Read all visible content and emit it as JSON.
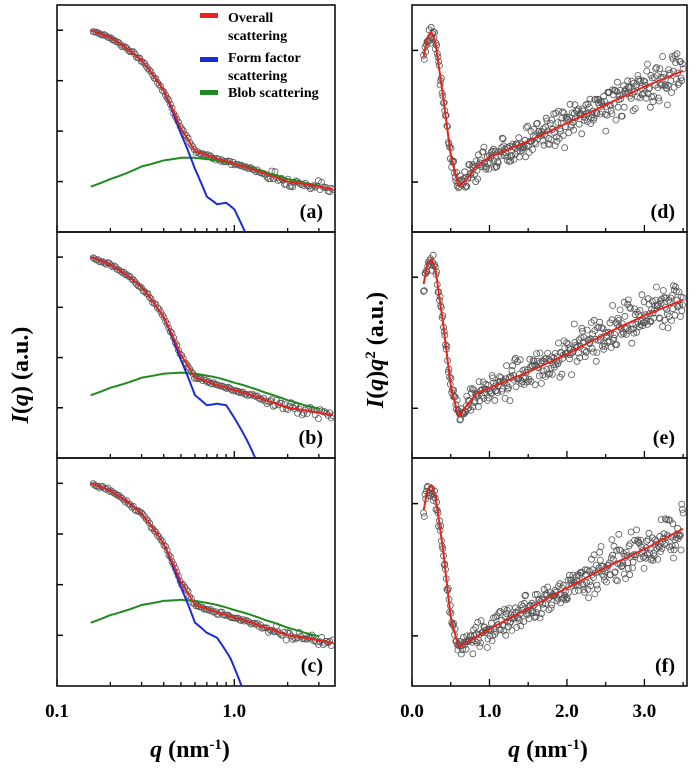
{
  "chart_data": {
    "type": "scatter",
    "legend": {
      "placement": "top-right of panel (a)",
      "entries": [
        {
          "key": "overall",
          "lines": [
            "Overall",
            "scattering"
          ],
          "color": "#e8231c"
        },
        {
          "key": "form",
          "lines": [
            "Form factor",
            "scattering"
          ],
          "color": "#1c2bd6"
        },
        {
          "key": "blob",
          "lines": [
            "Blob scattering"
          ],
          "color": "#1f8a1f"
        }
      ]
    },
    "left_axis": {
      "ylabel": [
        "I",
        "(",
        "q",
        ") (a.u.)"
      ],
      "xlabel": [
        "q",
        " (nm",
        "-1",
        ")"
      ],
      "xscale": "log",
      "xlim": [
        0.1,
        3.7
      ],
      "xticks": [
        {
          "v": 0.1,
          "label": "0.1"
        },
        {
          "v": 1.0,
          "label": "1.0"
        }
      ],
      "ylim_log10": [
        0,
        4.5
      ]
    },
    "right_axis": {
      "ylabel": [
        "I",
        "(",
        "q",
        ")",
        "q",
        "2",
        " (a.u.)"
      ],
      "xlabel": [
        "q",
        " (nm",
        "-1",
        ")"
      ],
      "xscale": "linear",
      "xlim": [
        0,
        3.55
      ],
      "xticks": [
        {
          "v": 0,
          "label": "0.0"
        },
        {
          "v": 1,
          "label": "1.0"
        },
        {
          "v": 2,
          "label": "2.0"
        },
        {
          "v": 3,
          "label": "3.0"
        }
      ],
      "ylim": [
        0,
        10
      ]
    },
    "panels": [
      {
        "id": "a",
        "label": "(a)",
        "overall": [
          [
            0.155,
            4.0
          ],
          [
            0.2,
            3.85
          ],
          [
            0.3,
            3.4
          ],
          [
            0.4,
            2.8
          ],
          [
            0.5,
            2.05
          ],
          [
            0.6,
            1.6
          ],
          [
            0.8,
            1.45
          ],
          [
            1.0,
            1.35
          ],
          [
            1.5,
            1.15
          ],
          [
            2.0,
            1.0
          ],
          [
            3.0,
            0.9
          ],
          [
            3.6,
            0.85
          ]
        ],
        "form": [
          [
            0.155,
            4.0
          ],
          [
            0.2,
            3.85
          ],
          [
            0.3,
            3.4
          ],
          [
            0.4,
            2.8
          ],
          [
            0.5,
            1.95
          ],
          [
            0.6,
            1.25
          ],
          [
            0.7,
            0.7
          ],
          [
            0.8,
            0.55
          ],
          [
            0.9,
            0.58
          ],
          [
            1.0,
            0.45
          ],
          [
            1.15,
            0.0
          ],
          [
            1.35,
            -0.8
          ]
        ],
        "blob": [
          [
            0.155,
            0.9
          ],
          [
            0.2,
            1.05
          ],
          [
            0.3,
            1.3
          ],
          [
            0.4,
            1.42
          ],
          [
            0.5,
            1.47
          ],
          [
            0.6,
            1.47
          ],
          [
            0.8,
            1.42
          ],
          [
            1.0,
            1.35
          ],
          [
            1.5,
            1.18
          ],
          [
            2.0,
            1.05
          ],
          [
            2.5,
            0.97
          ],
          [
            3.0,
            0.92
          ]
        ]
      },
      {
        "id": "b",
        "label": "(b)",
        "overall": [
          [
            0.155,
            4.0
          ],
          [
            0.2,
            3.85
          ],
          [
            0.3,
            3.4
          ],
          [
            0.4,
            2.8
          ],
          [
            0.5,
            2.05
          ],
          [
            0.6,
            1.6
          ],
          [
            0.8,
            1.45
          ],
          [
            1.0,
            1.35
          ],
          [
            1.5,
            1.15
          ],
          [
            2.0,
            1.0
          ],
          [
            3.0,
            0.9
          ],
          [
            3.6,
            0.85
          ]
        ],
        "form": [
          [
            0.155,
            4.0
          ],
          [
            0.2,
            3.85
          ],
          [
            0.3,
            3.4
          ],
          [
            0.4,
            2.8
          ],
          [
            0.5,
            1.95
          ],
          [
            0.6,
            1.25
          ],
          [
            0.7,
            1.05
          ],
          [
            0.8,
            1.08
          ],
          [
            0.9,
            1.05
          ],
          [
            1.0,
            0.8
          ],
          [
            1.2,
            0.3
          ],
          [
            1.5,
            -0.5
          ]
        ],
        "blob": [
          [
            0.155,
            1.25
          ],
          [
            0.2,
            1.4
          ],
          [
            0.3,
            1.6
          ],
          [
            0.4,
            1.68
          ],
          [
            0.5,
            1.7
          ],
          [
            0.6,
            1.68
          ],
          [
            0.8,
            1.6
          ],
          [
            1.0,
            1.5
          ],
          [
            1.5,
            1.3
          ],
          [
            2.0,
            1.15
          ],
          [
            2.5,
            1.05
          ],
          [
            3.0,
            0.98
          ]
        ]
      },
      {
        "id": "c",
        "label": "(c)",
        "overall": [
          [
            0.155,
            4.0
          ],
          [
            0.2,
            3.85
          ],
          [
            0.3,
            3.4
          ],
          [
            0.4,
            2.8
          ],
          [
            0.5,
            2.05
          ],
          [
            0.6,
            1.6
          ],
          [
            0.8,
            1.45
          ],
          [
            1.0,
            1.35
          ],
          [
            1.5,
            1.15
          ],
          [
            2.0,
            1.0
          ],
          [
            3.0,
            0.9
          ],
          [
            3.6,
            0.85
          ]
        ],
        "form": [
          [
            0.155,
            4.0
          ],
          [
            0.2,
            3.85
          ],
          [
            0.3,
            3.4
          ],
          [
            0.4,
            2.8
          ],
          [
            0.5,
            1.95
          ],
          [
            0.6,
            1.25
          ],
          [
            0.7,
            1.05
          ],
          [
            0.8,
            0.95
          ],
          [
            0.95,
            0.55
          ],
          [
            1.1,
            0.0
          ],
          [
            1.3,
            -0.6
          ],
          [
            1.4,
            -0.4
          ],
          [
            1.5,
            -0.05
          ],
          [
            1.58,
            -0.55
          ],
          [
            1.62,
            -0.8
          ]
        ],
        "blob": [
          [
            0.155,
            1.25
          ],
          [
            0.2,
            1.4
          ],
          [
            0.3,
            1.6
          ],
          [
            0.4,
            1.68
          ],
          [
            0.5,
            1.7
          ],
          [
            0.6,
            1.68
          ],
          [
            0.8,
            1.6
          ],
          [
            1.0,
            1.5
          ],
          [
            1.5,
            1.3
          ],
          [
            2.0,
            1.15
          ],
          [
            2.5,
            1.05
          ],
          [
            3.0,
            0.98
          ]
        ]
      },
      {
        "id": "d",
        "label": "(d)",
        "fit": [
          [
            0.15,
            7.7
          ],
          [
            0.2,
            8.6
          ],
          [
            0.25,
            8.8
          ],
          [
            0.3,
            8.4
          ],
          [
            0.4,
            6.0
          ],
          [
            0.5,
            3.4
          ],
          [
            0.6,
            2.0
          ],
          [
            0.7,
            2.3
          ],
          [
            0.8,
            2.8
          ],
          [
            1.0,
            3.3
          ],
          [
            1.5,
            4.0
          ],
          [
            2.0,
            4.8
          ],
          [
            2.5,
            5.6
          ],
          [
            3.0,
            6.4
          ],
          [
            3.5,
            7.1
          ]
        ]
      },
      {
        "id": "e",
        "label": "(e)",
        "fit": [
          [
            0.15,
            7.7
          ],
          [
            0.2,
            8.6
          ],
          [
            0.25,
            8.8
          ],
          [
            0.3,
            8.4
          ],
          [
            0.4,
            6.0
          ],
          [
            0.5,
            3.2
          ],
          [
            0.6,
            1.8
          ],
          [
            0.7,
            2.3
          ],
          [
            0.85,
            2.9
          ],
          [
            1.0,
            3.1
          ],
          [
            1.5,
            3.8
          ],
          [
            2.0,
            4.6
          ],
          [
            2.5,
            5.5
          ],
          [
            3.0,
            6.3
          ],
          [
            3.5,
            7.0
          ]
        ]
      },
      {
        "id": "f",
        "label": "(f)",
        "fit": [
          [
            0.15,
            7.7
          ],
          [
            0.2,
            8.6
          ],
          [
            0.25,
            8.8
          ],
          [
            0.3,
            8.4
          ],
          [
            0.4,
            6.0
          ],
          [
            0.5,
            3.0
          ],
          [
            0.6,
            1.7
          ],
          [
            0.75,
            2.0
          ],
          [
            1.0,
            2.5
          ],
          [
            1.5,
            3.4
          ],
          [
            2.0,
            4.3
          ],
          [
            2.5,
            5.2
          ],
          [
            3.0,
            6.0
          ],
          [
            3.5,
            6.9
          ]
        ]
      }
    ]
  }
}
